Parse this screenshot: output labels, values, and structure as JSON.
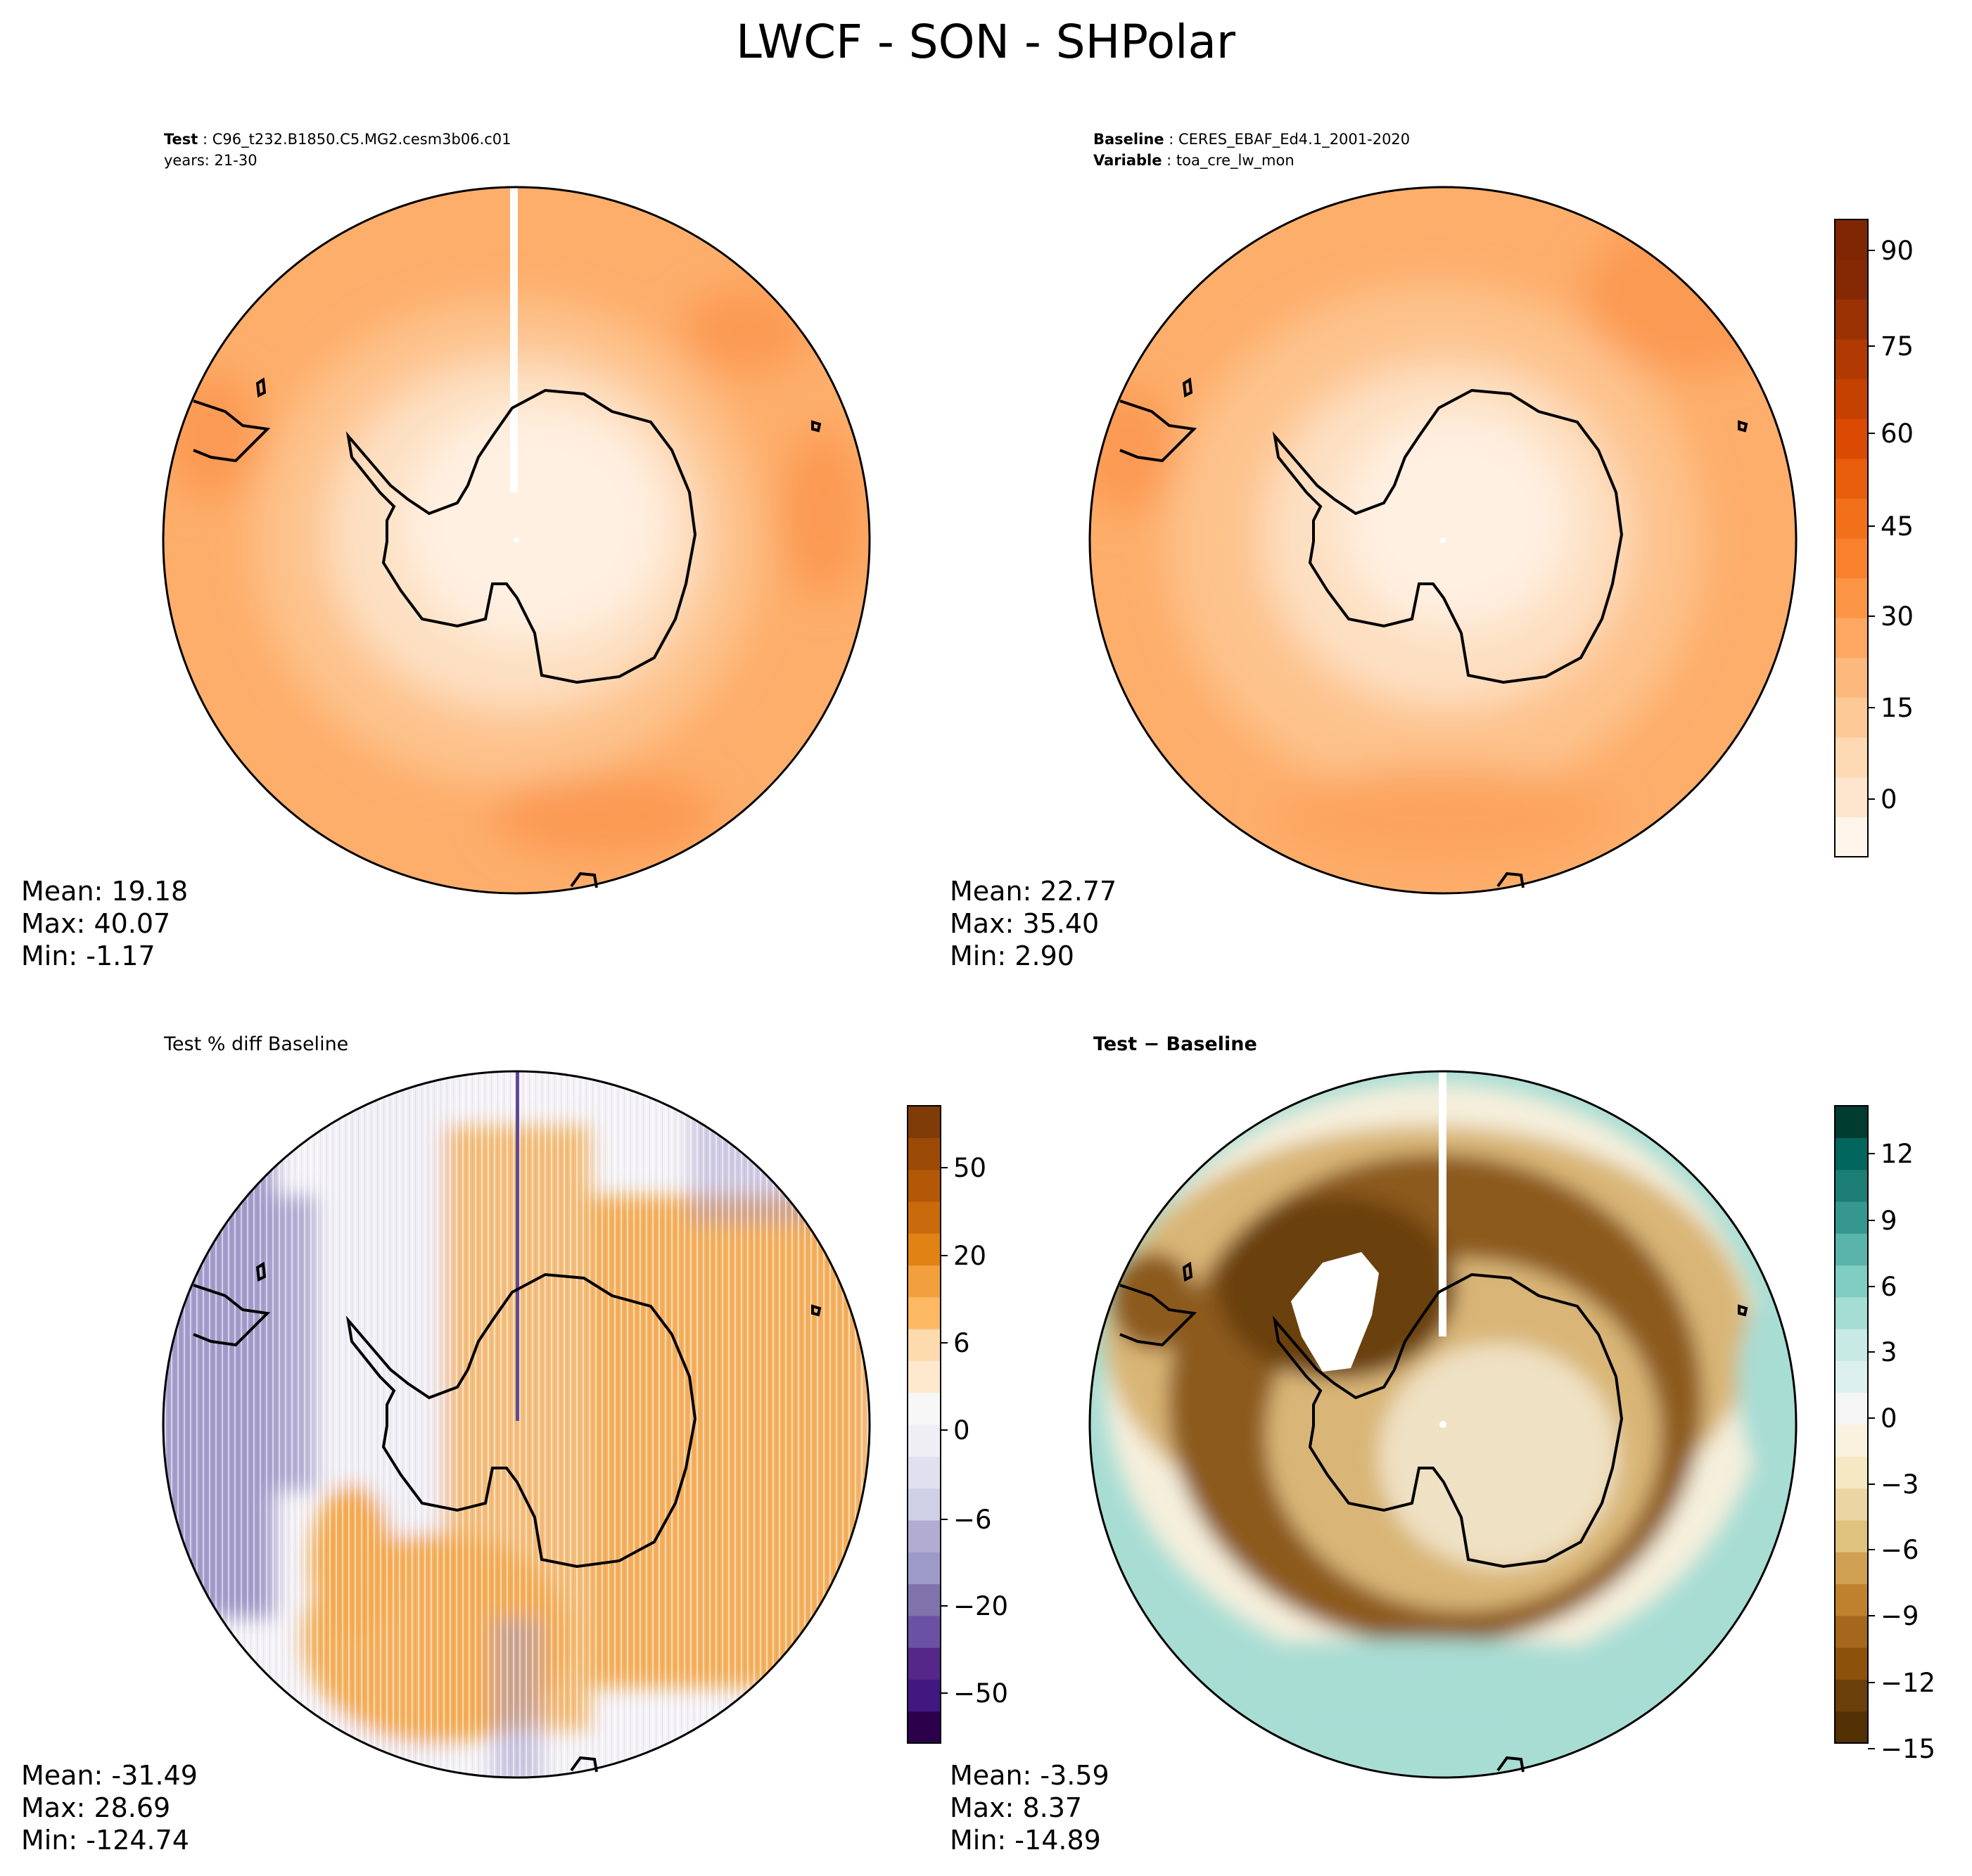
{
  "figure": {
    "title": "LWCF - SON - SHPolar"
  },
  "panels": {
    "test": {
      "label_bold": "Test",
      "label_value": "C96_t232.B1850.C5.MG2.cesm3b06.c01",
      "line2": "years: 21-30",
      "stats": {
        "mean": "Mean: 19.18",
        "max": "Max: 40.07",
        "min": "Min: -1.17"
      }
    },
    "baseline": {
      "label_bold": "Baseline",
      "label_value": "CERES_EBAF_Ed4.1_2001-2020",
      "label2_bold": "Variable",
      "label2_value": "toa_cre_lw_mon",
      "stats": {
        "mean": "Mean: 22.77",
        "max": "Max: 35.40",
        "min": "Min:  2.90"
      }
    },
    "pctdiff": {
      "label": "Test % diff Baseline",
      "stats": {
        "mean": "Mean: -31.49",
        "max": "Max: 28.69",
        "min": "Min: -124.74"
      }
    },
    "diff": {
      "label": "Test − Baseline",
      "stats": {
        "mean": "Mean: -3.59",
        "max": "Max:  8.37",
        "min": "Min: -14.89"
      }
    }
  },
  "colorbars": {
    "top": {
      "ticks": [
        "90",
        "75",
        "60",
        "45",
        "30",
        "15",
        "0"
      ],
      "colors": [
        "#fff5eb",
        "#fee6ce",
        "#fdd9b4",
        "#fdc997",
        "#fdb97d",
        "#fda762",
        "#fd9547",
        "#f9812e",
        "#f3701b",
        "#e85d0c",
        "#db4a03",
        "#c54102",
        "#b13a03",
        "#9b3203",
        "#852904",
        "#7f2704"
      ]
    },
    "pctdiff": {
      "ticks": [
        "50",
        "20",
        "6",
        "0",
        "−6",
        "−20",
        "−50"
      ],
      "colors": [
        "#2d004b",
        "#411780",
        "#542788",
        "#6a51a3",
        "#8073ac",
        "#9e9ac8",
        "#b2abd2",
        "#cfd0e6",
        "#e1e0ee",
        "#efeef5",
        "#f7f7f7",
        "#fee9cf",
        "#fddbaf",
        "#fdb863",
        "#f2a03e",
        "#e08214",
        "#c96b0c",
        "#b35806",
        "#9b4a05",
        "#7f3b08"
      ]
    },
    "diff": {
      "ticks": [
        "12",
        "9",
        "6",
        "3",
        "0",
        "−3",
        "−6",
        "−9",
        "−12",
        "−15"
      ],
      "colors": [
        "#543005",
        "#6b3f0a",
        "#8c510a",
        "#a4671b",
        "#bf812d",
        "#cf9f52",
        "#dfc27d",
        "#ebd6a3",
        "#f6e8c3",
        "#faf1df",
        "#f5f5f5",
        "#dcf0ed",
        "#c7eae5",
        "#a5ddd4",
        "#80cdc1",
        "#5ab4ac",
        "#35978f",
        "#1d7e75",
        "#01665e",
        "#003c30"
      ]
    }
  },
  "map_colors": {
    "test": {
      "outer": "#fdae6b",
      "ring": "#fdc38d",
      "inner": "#fde0c2",
      "core": "#fff0e2"
    },
    "baseline": {
      "outer": "#fdae6b",
      "ring": "#fdc38d",
      "inner": "#fde0c2",
      "core": "#fff0e2"
    },
    "pctdiff": {
      "purple": "#a49ccb",
      "light": "#f0eef5",
      "orange": "#f6ac53"
    },
    "diff": {
      "teal": "#a8ddd4",
      "cream": "#f5efdc",
      "tan": "#d9b677",
      "brown": "#8c5a1c",
      "dark": "#6b4010"
    }
  }
}
